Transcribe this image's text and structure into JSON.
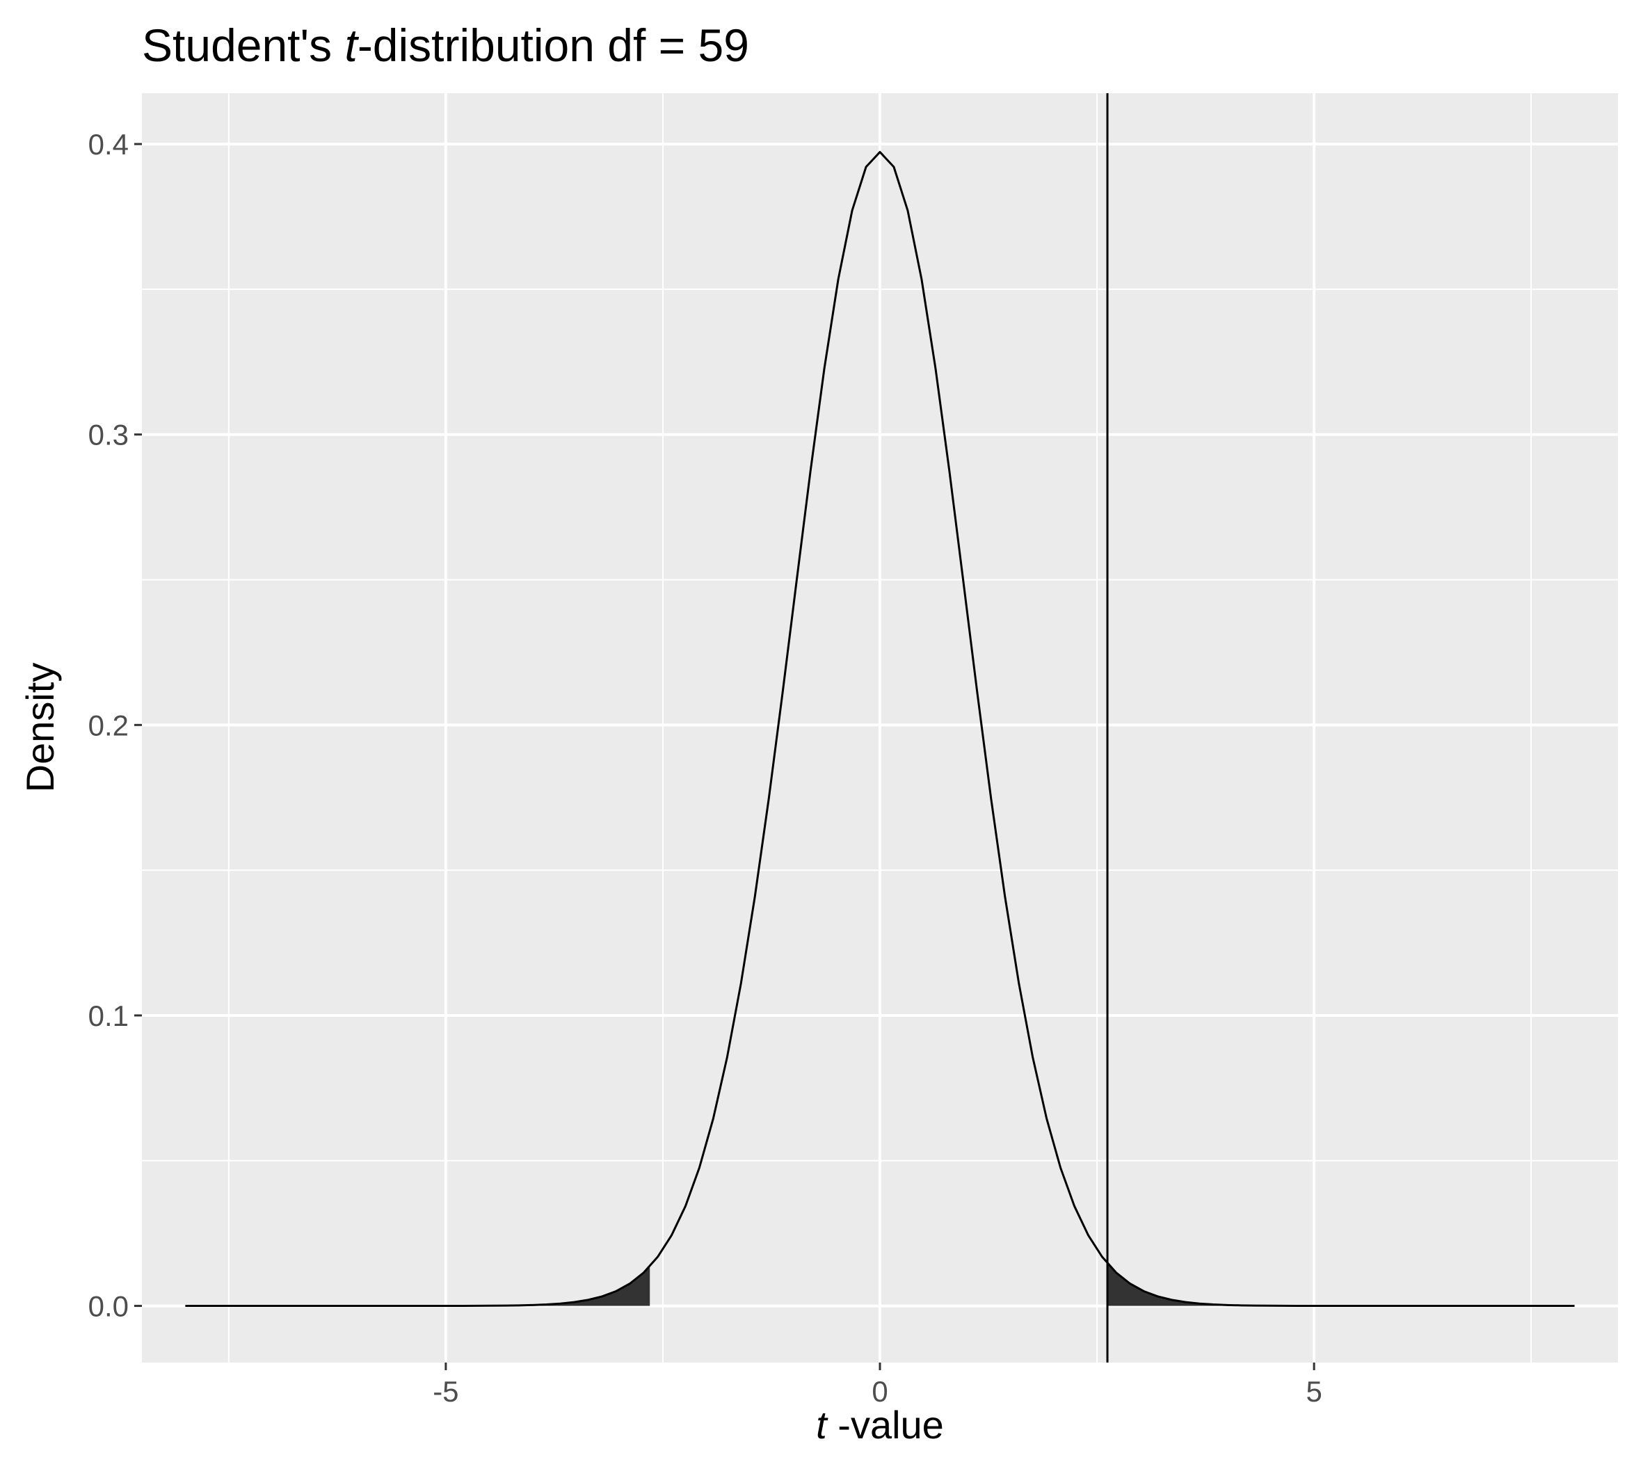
{
  "chart_data": {
    "type": "area",
    "title_prefix": "Student's ",
    "title_italic": "t",
    "title_suffix": "-distribution df = 59",
    "xlabel_italic": "t",
    "xlabel_suffix": " -value",
    "ylabel": "Density",
    "df": 59,
    "xlim": [
      -8.5,
      8.5
    ],
    "ylim": [
      -0.0195,
      0.4175
    ],
    "curve_range": [
      -8,
      8
    ],
    "x_ticks": [
      -5,
      0,
      5
    ],
    "x_tick_labels": [
      "-5",
      "0",
      "5"
    ],
    "x_minor_ticks": [
      -7.5,
      -2.5,
      2.5,
      7.5
    ],
    "y_ticks": [
      0.0,
      0.1,
      0.2,
      0.3,
      0.4
    ],
    "y_tick_labels": [
      "0.0",
      "0.1",
      "0.2",
      "0.3",
      "0.4"
    ],
    "y_minor_ticks": [
      0.05,
      0.15,
      0.25,
      0.35
    ],
    "vline_x": 2.62,
    "shaded_lower_max": -2.65,
    "shaded_upper_min": 2.62,
    "grid": true,
    "colors": {
      "panel_background": "#ebebeb",
      "grid_line": "#ffffff",
      "curve": "#000000",
      "shade": "#333333",
      "tick_text": "#4d4d4d",
      "tick_mark": "#333333"
    }
  }
}
